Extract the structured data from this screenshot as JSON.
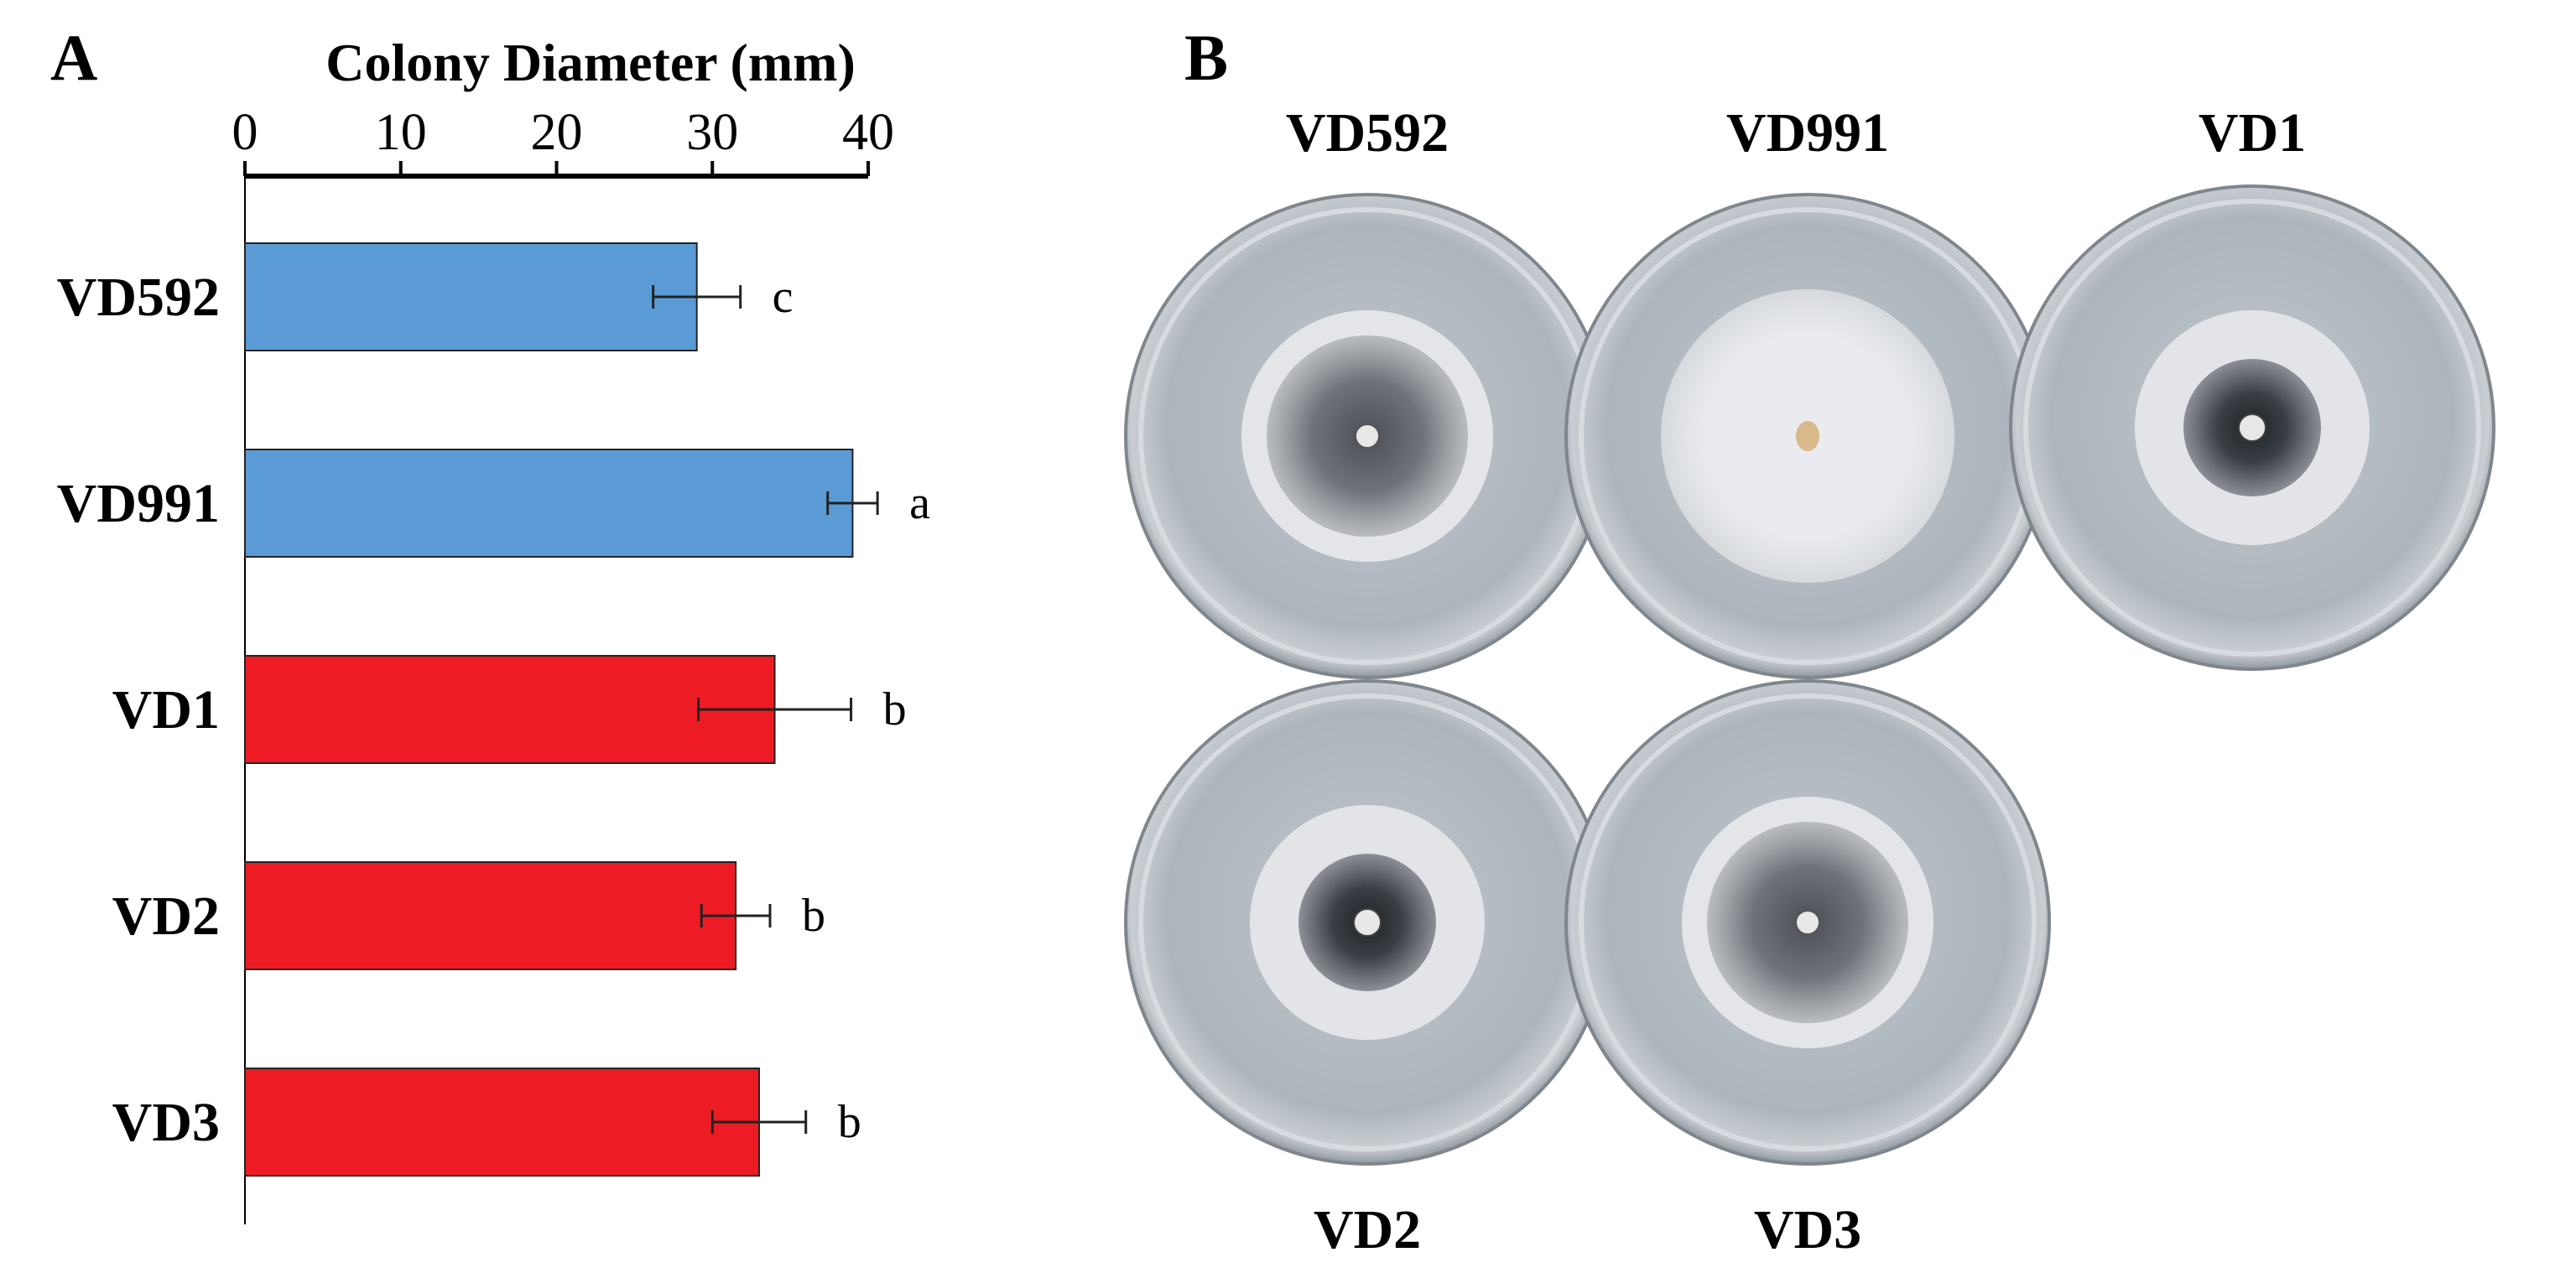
{
  "panel_a_label": "A",
  "panel_b_label": "B",
  "chart_data": {
    "type": "bar",
    "orientation": "horizontal",
    "title": "Colony Diameter (mm)",
    "xlabel": "Colony Diameter (mm)",
    "ylabel": "",
    "xlim": [
      0,
      40
    ],
    "xticks": [
      0,
      10,
      20,
      30,
      40
    ],
    "x_axis_position": "top",
    "categories": [
      "VD592",
      "VD991",
      "VD1",
      "VD2",
      "VD3"
    ],
    "values": [
      29.0,
      39.0,
      34.0,
      31.5,
      33.0
    ],
    "errors": [
      2.8,
      1.6,
      4.9,
      2.2,
      3.0
    ],
    "significance": [
      "c",
      "a",
      "b",
      "b",
      "b"
    ],
    "colors": [
      "#5b9bd5",
      "#5b9bd5",
      "#ed1c24",
      "#ed1c24",
      "#ed1c24"
    ]
  },
  "plates": [
    {
      "label": "VD592",
      "style": "dense-grey"
    },
    {
      "label": "VD991",
      "style": "white"
    },
    {
      "label": "VD1",
      "style": "dark-center"
    },
    {
      "label": "VD2",
      "style": "dark-center"
    },
    {
      "label": "VD3",
      "style": "dense-grey"
    }
  ]
}
